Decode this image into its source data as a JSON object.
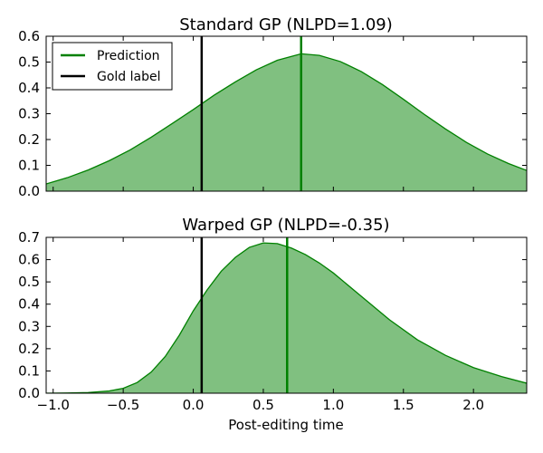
{
  "chart_data": [
    {
      "type": "area",
      "title": "Standard GP (NLPD=1.09)",
      "xlabel": "",
      "ylabel": "",
      "xlim": [
        -1.05,
        2.38
      ],
      "ylim": [
        0,
        0.6
      ],
      "x_ticks": [
        "−1.0",
        "−0.5",
        "0.0",
        "0.5",
        "1.0",
        "1.5",
        "2.0"
      ],
      "y_ticks": [
        "0.0",
        "0.1",
        "0.2",
        "0.3",
        "0.4",
        "0.5",
        "0.6"
      ],
      "grid": false,
      "legend": {
        "placement": "top-left",
        "entries": [
          "Prediction",
          "Gold label"
        ]
      },
      "density_curve": {
        "x": [
          -1.05,
          -0.9,
          -0.75,
          -0.6,
          -0.45,
          -0.3,
          -0.15,
          0.0,
          0.15,
          0.3,
          0.45,
          0.6,
          0.77,
          0.9,
          1.05,
          1.2,
          1.35,
          1.5,
          1.65,
          1.8,
          1.95,
          2.1,
          2.25,
          2.38
        ],
        "y": [
          0.028,
          0.052,
          0.082,
          0.118,
          0.16,
          0.209,
          0.262,
          0.316,
          0.372,
          0.423,
          0.47,
          0.507,
          0.532,
          0.526,
          0.502,
          0.463,
          0.413,
          0.356,
          0.297,
          0.241,
          0.189,
          0.144,
          0.107,
          0.08
        ]
      },
      "prediction": 0.77,
      "gold_label": 0.06,
      "colors": {
        "fill": "#80c080",
        "line": "#008000",
        "gold": "#000000"
      }
    },
    {
      "type": "area",
      "title": "Warped GP (NLPD=-0.35)",
      "xlabel": "Post-editing time",
      "ylabel": "",
      "xlim": [
        -1.05,
        2.38
      ],
      "ylim": [
        0,
        0.7
      ],
      "x_ticks": [
        "−1.0",
        "−0.5",
        "0.0",
        "0.5",
        "1.0",
        "1.5",
        "2.0"
      ],
      "y_ticks": [
        "0.0",
        "0.1",
        "0.2",
        "0.3",
        "0.4",
        "0.5",
        "0.6",
        "0.7"
      ],
      "grid": false,
      "density_curve": {
        "x": [
          -1.05,
          -0.9,
          -0.75,
          -0.6,
          -0.5,
          -0.4,
          -0.3,
          -0.2,
          -0.1,
          0.0,
          0.1,
          0.2,
          0.3,
          0.4,
          0.5,
          0.6,
          0.7,
          0.8,
          0.9,
          1.0,
          1.2,
          1.4,
          1.6,
          1.8,
          2.0,
          2.2,
          2.38
        ],
        "y": [
          0.0,
          0.001,
          0.003,
          0.01,
          0.022,
          0.048,
          0.095,
          0.165,
          0.26,
          0.37,
          0.465,
          0.548,
          0.61,
          0.655,
          0.675,
          0.672,
          0.652,
          0.623,
          0.585,
          0.54,
          0.435,
          0.33,
          0.24,
          0.17,
          0.115,
          0.075,
          0.045
        ]
      },
      "prediction": 0.67,
      "gold_label": 0.06,
      "colors": {
        "fill": "#80c080",
        "line": "#008000",
        "gold": "#000000"
      }
    }
  ]
}
